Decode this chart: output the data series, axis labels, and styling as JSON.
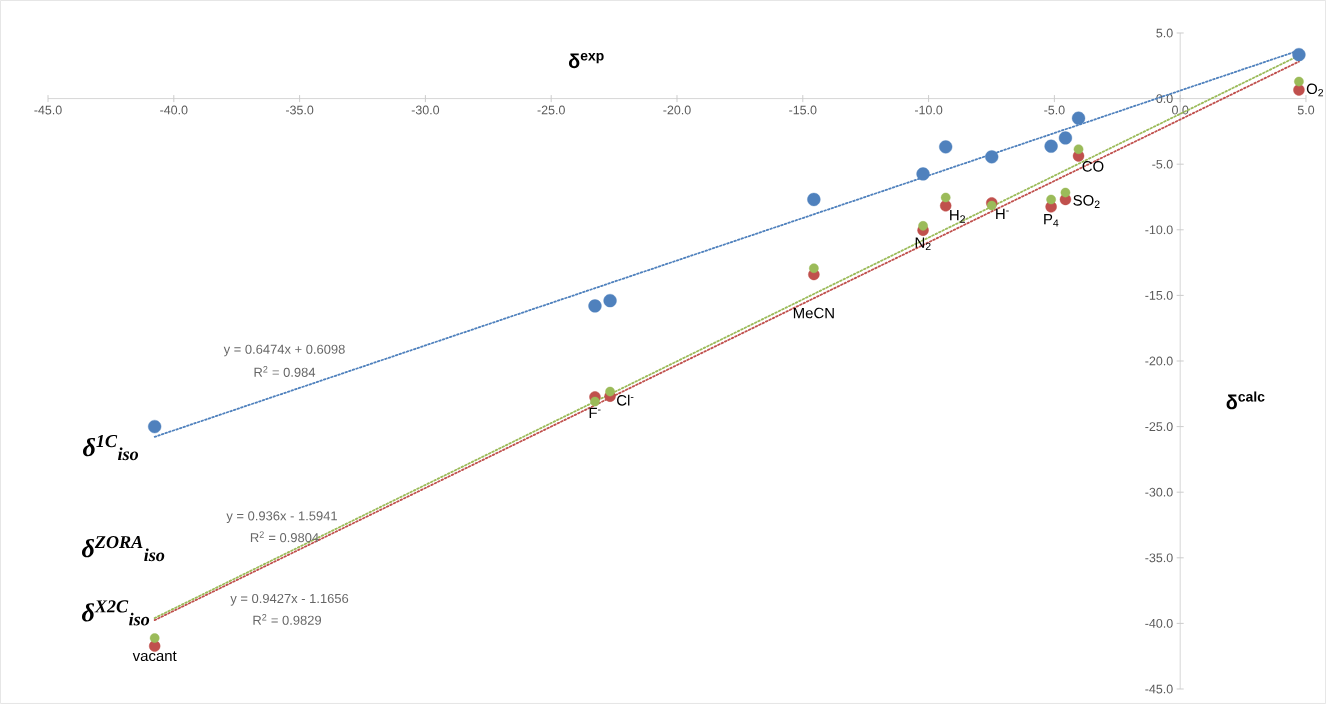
{
  "chart_data": {
    "type": "scatter",
    "xlabel": "δ$^{exp}$",
    "ylabel": "δ$^{calc}$",
    "x": [
      -40.76,
      -23.26,
      -22.66,
      -14.56,
      -10.22,
      -9.32,
      -7.49,
      -5.13,
      -4.56,
      -4.04,
      4.72
    ],
    "series": [
      {
        "color": "#4f81bd",
        "values": [
          -25.0,
          -15.8,
          -15.4,
          -7.69,
          -5.74,
          -3.68,
          -4.44,
          -3.63,
          -3.0,
          -1.49,
          3.35
        ]
      },
      {
        "color": "#c0504d",
        "values": [
          -41.73,
          -22.74,
          -22.68,
          -13.41,
          -10.03,
          -8.17,
          -7.95,
          -8.25,
          -7.69,
          -4.37,
          0.66
        ]
      },
      {
        "color": "#9bbb59",
        "values": [
          -41.12,
          -23.09,
          -22.33,
          -12.93,
          -9.7,
          -7.54,
          -8.15,
          -7.69,
          -7.16,
          -3.86,
          1.3
        ]
      },
      {
        "type": "line",
        "marker": "none",
        "color": "#4f81bd",
        "line_style": "dotted",
        "values": [
          -25.78,
          -14.45,
          -14.06,
          -8.82,
          -6.01,
          -5.42,
          -4.24,
          -2.71,
          -2.34,
          -2.01,
          3.67
        ]
      },
      {
        "type": "line",
        "marker": "none",
        "color": "#c0504d",
        "line_style": "dotted",
        "values": [
          -39.75,
          -23.37,
          -22.8,
          -15.22,
          -11.16,
          -10.32,
          -8.6,
          -6.4,
          -5.86,
          -5.38,
          2.82
        ]
      },
      {
        "type": "line",
        "marker": "none",
        "color": "#9bbb59",
        "line_style": "dotted",
        "values": [
          -39.59,
          -23.09,
          -22.53,
          -14.89,
          -10.8,
          -9.95,
          -8.23,
          -6.0,
          -5.46,
          -4.97,
          3.28
        ]
      }
    ],
    "marker": "circle",
    "xlim": [
      -45,
      5
    ],
    "ylim": [
      -45,
      5
    ],
    "xticks": [
      {
        "value": -45,
        "label": "-45.0"
      },
      {
        "value": -40,
        "label": "-40.0"
      },
      {
        "value": -35,
        "label": "-35.0"
      },
      {
        "value": -30,
        "label": "-30.0"
      },
      {
        "value": -25,
        "label": "-25.0"
      },
      {
        "value": -20,
        "label": "-20.0"
      },
      {
        "value": -15,
        "label": "-15.0"
      },
      {
        "value": -10,
        "label": "-10.0"
      },
      {
        "value": -5,
        "label": "-5.0"
      },
      {
        "value": 0,
        "label": "0.0"
      },
      {
        "value": 5,
        "label": "5.0"
      }
    ],
    "yticks": [
      {
        "value": -45,
        "label": "-45.0"
      },
      {
        "value": -40,
        "label": "-40.0"
      },
      {
        "value": -35,
        "label": "-35.0"
      },
      {
        "value": -30,
        "label": "-30.0"
      },
      {
        "value": -25,
        "label": "-25.0"
      },
      {
        "value": -20,
        "label": "-20.0"
      },
      {
        "value": -15,
        "label": "-15.0"
      },
      {
        "value": -10,
        "label": "-10.0"
      },
      {
        "value": -5,
        "label": "-5.0"
      },
      {
        "value": 0,
        "label": "0.0"
      },
      {
        "value": 5,
        "label": "5.0"
      }
    ],
    "annotations": [
      {
        "text": "vacant",
        "x": -40.76,
        "y": -41.73
      },
      {
        "text": "F$^{-}$",
        "x": -23.26,
        "y": -23.09
      },
      {
        "text": "Cl$^{-}$",
        "x": -22.66,
        "y": -22.68
      },
      {
        "text": "MeCN",
        "x": -14.56,
        "y": -13.41
      },
      {
        "text": "N$_{2}$",
        "x": -10.22,
        "y": -10.03
      },
      {
        "text": "H$_{2}$",
        "x": -9.32,
        "y": -8.17
      },
      {
        "text": "H$^{-}$",
        "x": -7.49,
        "y": -8.15
      },
      {
        "text": "P$_{4}$",
        "x": -5.13,
        "y": -8.25
      },
      {
        "text": "SO$_{2}$",
        "x": -4.56,
        "y": -7.69
      },
      {
        "text": "CO",
        "x": -4.04,
        "y": -4.37
      },
      {
        "text": "O$_{2}$",
        "x": 4.72,
        "y": 0.66
      },
      "y = 0.6474x + 0.6098",
      "R$^{2}$ = 0.984",
      "y = 0.936x - 1.5941",
      "R$^{2}$ = 0.9804",
      "y = 0.9427x - 1.1656",
      "R$^{2}$ = 0.9829",
      "δ$^{1C}$$_{iso}$",
      "δ$^{ZORA}$$_{iso}$",
      "δ$^{X2C}$$_{iso}$"
    ]
  }
}
